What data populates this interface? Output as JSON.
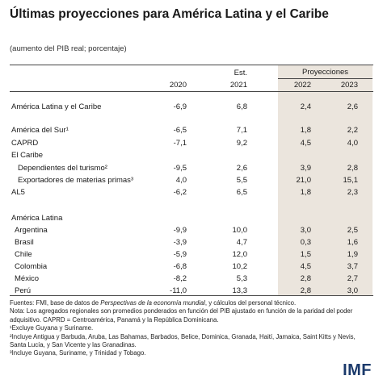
{
  "title": "Últimas proyecciones para América Latina y el Caribe",
  "subtitle": "(aumento del PIB real; porcentaje)",
  "header": {
    "projections_label": "Proyecciones",
    "col1": "2020",
    "col2_top": "Est.",
    "col2": "2021",
    "col3": "2022",
    "col4": "2023"
  },
  "rows": [
    {
      "label": "América Latina y el Caribe",
      "v": [
        "-6,9",
        "6,8",
        "2,4",
        "2,6"
      ]
    },
    {
      "label": "América del Sur¹",
      "v": [
        "-6,5",
        "7,1",
        "1,8",
        "2,2"
      ]
    },
    {
      "label": "CAPRD",
      "v": [
        "-7,1",
        "9,2",
        "4,5",
        "4,0"
      ]
    },
    {
      "label": "El Caribe",
      "v": [
        "",
        "",
        "",
        ""
      ]
    },
    {
      "label": "Dependientes del turismo²",
      "v": [
        "-9,5",
        "2,6",
        "3,9",
        "2,8"
      ]
    },
    {
      "label": "Exportadores de materias primas³",
      "v": [
        "4,0",
        "5,5",
        "21,0",
        "15,1"
      ]
    },
    {
      "label": "AL5",
      "v": [
        "-6,2",
        "6,5",
        "1,8",
        "2,3"
      ]
    },
    {
      "label": "América Latina",
      "v": [
        "",
        "",
        "",
        ""
      ]
    },
    {
      "label": "Argentina",
      "v": [
        "-9,9",
        "10,0",
        "3,0",
        "2,5"
      ]
    },
    {
      "label": "Brasil",
      "v": [
        "-3,9",
        "4,7",
        "0,3",
        "1,6"
      ]
    },
    {
      "label": "Chile",
      "v": [
        "-5,9",
        "12,0",
        "1,5",
        "1,9"
      ]
    },
    {
      "label": "Colombia",
      "v": [
        "-6,8",
        "10,2",
        "4,5",
        "3,7"
      ]
    },
    {
      "label": "México",
      "v": [
        "-8,2",
        "5,3",
        "2,8",
        "2,7"
      ]
    },
    {
      "label": "Perú",
      "v": [
        "-11,0",
        "13,3",
        "2,8",
        "3,0"
      ]
    }
  ],
  "notes": {
    "fuentes_pre": "Fuentes: FMI, base de datos de ",
    "fuentes_italic": "Perspectivas de la economía mundial",
    "fuentes_post": ", y cálculos del personal técnico.",
    "nota": "Nota: Los agregados regionales son promedios ponderados en función del PIB ajustado en función de la paridad del poder adquisitivo. CAPRD = Centroamérica, Panamá y la República Dominicana.",
    "fn1": "¹Excluye Guyana y Suriname.",
    "fn2": "²Incluye Antigua y Barbuda, Aruba, Las Bahamas, Barbados, Belice, Dominica, Granada, Haití, Jamaica, Saint Kitts y Nevis, Santa Lucía, y San Vicente y las Granadinas.",
    "fn3": "³Incluye Guyana, Suriname, y Trinidad y Tobago."
  },
  "logo": "IMF"
}
